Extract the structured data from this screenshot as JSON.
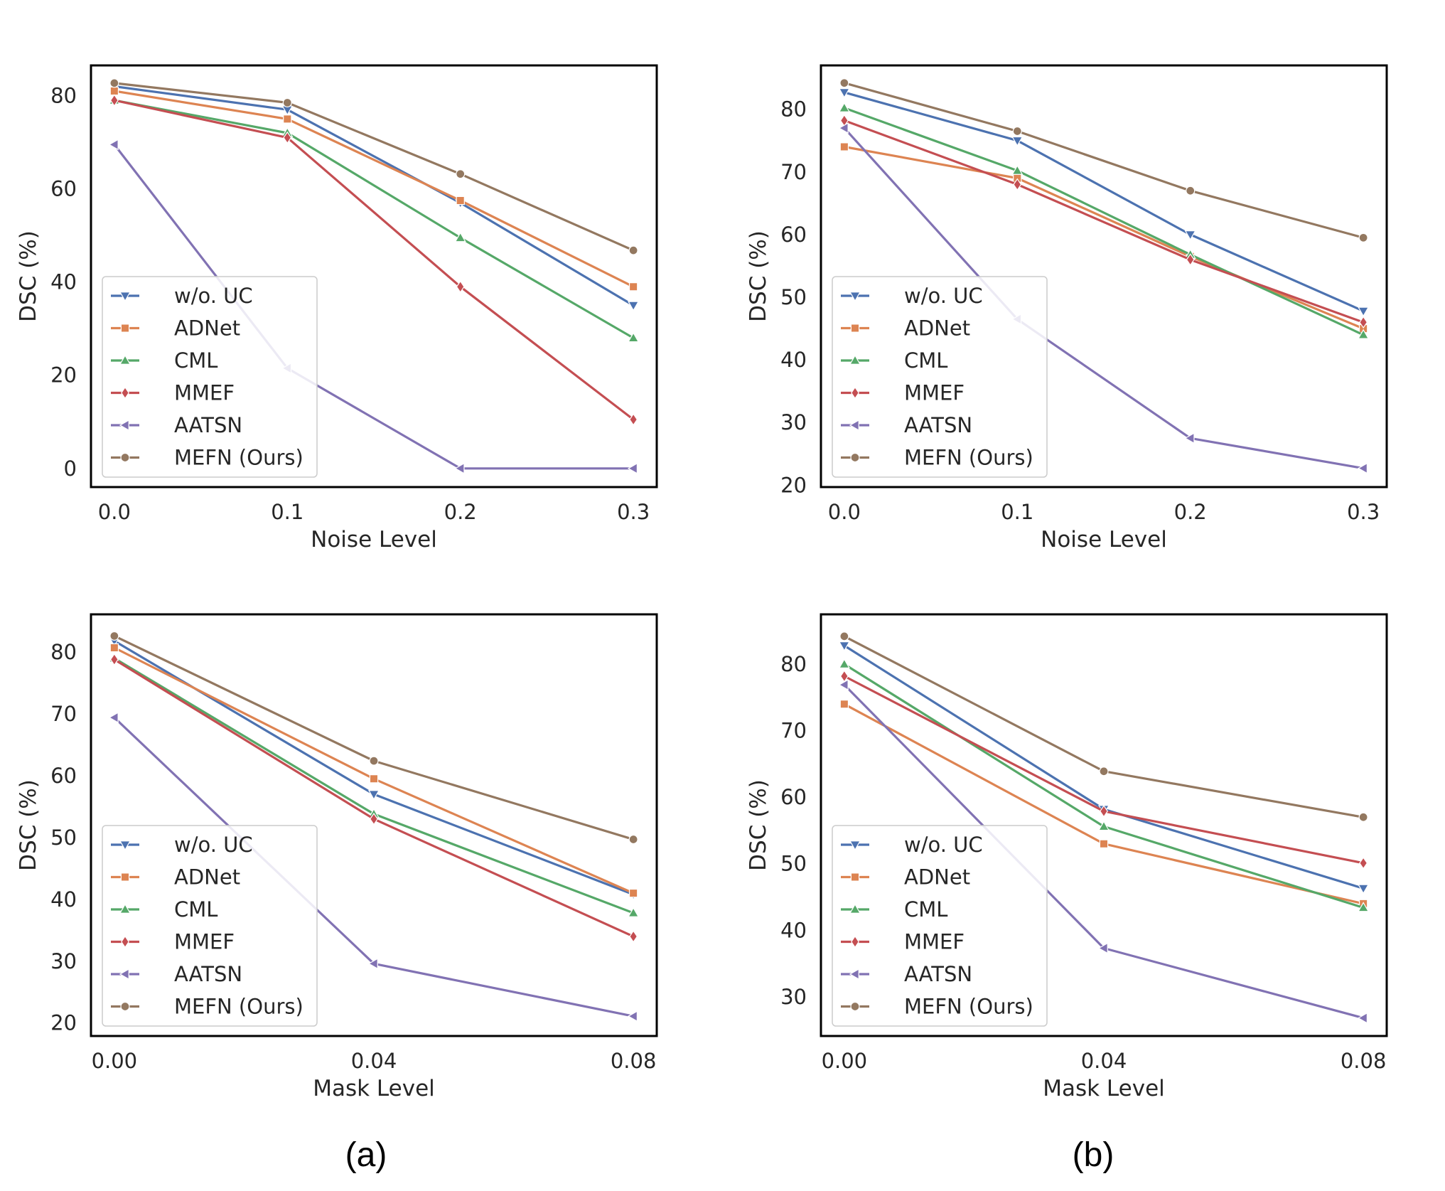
{
  "captions": [
    "(a)",
    "(b)"
  ],
  "colors": {
    "w/o. UC": "#4c72b0",
    "ADNet": "#dd8452",
    "CML": "#55a868",
    "MMEF": "#c44e52",
    "AATSN": "#8172b3",
    "MEFN (Ours)": "#937860",
    "frame": "#000000",
    "text": "#262626"
  },
  "markers": {
    "w/o. UC": "triangle-down",
    "ADNet": "square",
    "CML": "triangle-up",
    "MMEF": "diamond",
    "AATSN": "triangle-left",
    "MEFN (Ours)": "circle"
  },
  "chart_data": [
    {
      "panel": "a-top",
      "type": "line",
      "xlabel": "Noise Level",
      "ylabel": "DSC (%)",
      "x": [
        0.0,
        0.1,
        0.2,
        0.3
      ],
      "xticks": [
        "0.0",
        "0.1",
        "0.2",
        "0.3"
      ],
      "xlim": [
        -0.0135,
        0.3135
      ],
      "ylim": [
        -4,
        86.5
      ],
      "yticks": [
        0,
        20,
        40,
        60,
        80
      ],
      "legend": "lower-left",
      "series": [
        {
          "name": "w/o. UC",
          "values": [
            82.0,
            77.0,
            57.0,
            35.0
          ]
        },
        {
          "name": "ADNet",
          "values": [
            81.0,
            75.0,
            57.5,
            39.0
          ]
        },
        {
          "name": "CML",
          "values": [
            79.0,
            72.0,
            49.5,
            28.0
          ]
        },
        {
          "name": "MMEF",
          "values": [
            79.0,
            71.0,
            39.0,
            10.5
          ]
        },
        {
          "name": "AATSN",
          "values": [
            69.5,
            21.5,
            0.0,
            0.0
          ]
        },
        {
          "name": "MEFN (Ours)",
          "values": [
            82.7,
            78.5,
            63.2,
            46.8
          ]
        }
      ]
    },
    {
      "panel": "b-top",
      "type": "line",
      "xlabel": "Noise Level",
      "ylabel": "DSC (%)",
      "x": [
        0.0,
        0.1,
        0.2,
        0.3
      ],
      "xticks": [
        "0.0",
        "0.1",
        "0.2",
        "0.3"
      ],
      "xlim": [
        -0.0135,
        0.3135
      ],
      "ylim": [
        19.7,
        87
      ],
      "yticks": [
        20,
        30,
        40,
        50,
        60,
        70,
        80
      ],
      "legend": "lower-left",
      "series": [
        {
          "name": "w/o. UC",
          "values": [
            82.7,
            75.0,
            60.0,
            47.8
          ]
        },
        {
          "name": "ADNet",
          "values": [
            74.0,
            69.0,
            56.5,
            45.0
          ]
        },
        {
          "name": "CML",
          "values": [
            80.2,
            70.2,
            56.8,
            44.0
          ]
        },
        {
          "name": "MMEF",
          "values": [
            78.2,
            68.0,
            56.0,
            46.0
          ]
        },
        {
          "name": "AATSN",
          "values": [
            77.0,
            46.5,
            27.5,
            22.7
          ]
        },
        {
          "name": "MEFN (Ours)",
          "values": [
            84.2,
            76.5,
            67.0,
            59.5
          ]
        }
      ]
    },
    {
      "panel": "a-bottom",
      "type": "line",
      "xlabel": "Mask Level",
      "ylabel": "DSC (%)",
      "x": [
        0.0,
        0.04,
        0.08
      ],
      "xticks": [
        "0.00",
        "0.04",
        "0.08"
      ],
      "xlim": [
        -0.0036,
        0.0836
      ],
      "ylim": [
        17.9,
        86.1
      ],
      "yticks": [
        20,
        30,
        40,
        50,
        60,
        70,
        80
      ],
      "legend": "lower-left",
      "series": [
        {
          "name": "w/o. UC",
          "values": [
            81.8,
            57.0,
            40.8
          ]
        },
        {
          "name": "ADNet",
          "values": [
            80.7,
            59.5,
            41.0
          ]
        },
        {
          "name": "CML",
          "values": [
            79.0,
            53.8,
            37.8
          ]
        },
        {
          "name": "MMEF",
          "values": [
            78.8,
            53.0,
            34.0
          ]
        },
        {
          "name": "AATSN",
          "values": [
            69.4,
            29.6,
            21.1
          ]
        },
        {
          "name": "MEFN (Ours)",
          "values": [
            82.6,
            62.4,
            49.7
          ]
        }
      ]
    },
    {
      "panel": "b-bottom",
      "type": "line",
      "xlabel": "Mask Level",
      "ylabel": "DSC (%)",
      "x": [
        0.0,
        0.04,
        0.08
      ],
      "xticks": [
        "0.00",
        "0.04",
        "0.08"
      ],
      "xlim": [
        -0.0036,
        0.0836
      ],
      "ylim": [
        24.1,
        87.5
      ],
      "yticks": [
        30,
        40,
        50,
        60,
        70,
        80
      ],
      "legend": "lower-left",
      "series": [
        {
          "name": "w/o. UC",
          "values": [
            82.8,
            58.2,
            46.3
          ]
        },
        {
          "name": "ADNet",
          "values": [
            74.0,
            53.0,
            44.0
          ]
        },
        {
          "name": "CML",
          "values": [
            80.0,
            55.6,
            43.4
          ]
        },
        {
          "name": "MMEF",
          "values": [
            78.2,
            57.9,
            50.1
          ]
        },
        {
          "name": "AATSN",
          "values": [
            76.9,
            37.3,
            26.8
          ]
        },
        {
          "name": "MEFN (Ours)",
          "values": [
            84.2,
            63.9,
            57.0
          ]
        }
      ]
    }
  ]
}
